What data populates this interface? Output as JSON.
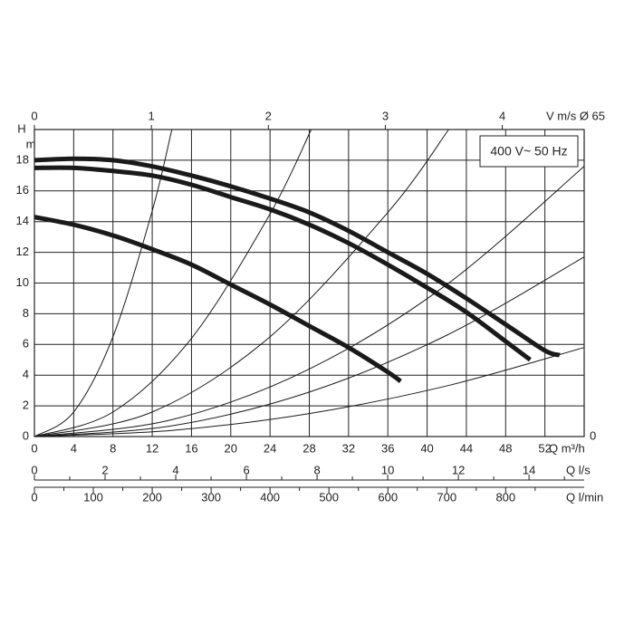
{
  "chart_data": {
    "type": "line",
    "y_label": "H",
    "y_unit": "m",
    "x_label": "Q m³/h",
    "xlim": [
      0,
      56
    ],
    "xticks": [
      0,
      4,
      8,
      12,
      16,
      20,
      24,
      28,
      32,
      36,
      40,
      44,
      48,
      52
    ],
    "ylim": [
      0,
      20
    ],
    "yticks": [
      0,
      2,
      4,
      6,
      8,
      10,
      12,
      14,
      16,
      18
    ],
    "y2lim": [
      0,
      20
    ],
    "y2ticks": [
      0
    ],
    "grid": true,
    "annotation": "400 V~ 50 Hz",
    "top_axis": {
      "label": "V m/s Ø 65",
      "xlim": [
        0,
        4.7
      ],
      "xticks": [
        0,
        1,
        2,
        3,
        4
      ]
    },
    "bottom_axes": [
      {
        "label": "Q l/s",
        "xlim": [
          0,
          15.56
        ],
        "xticks": [
          0,
          2,
          4,
          6,
          8,
          10,
          12,
          14
        ],
        "minor_xticks": [
          1,
          3,
          5,
          7,
          9,
          11,
          13,
          15
        ]
      },
      {
        "label": "Q l/min",
        "xlim": [
          0,
          933.3
        ],
        "xticks": [
          0,
          100,
          200,
          300,
          400,
          500,
          600,
          700,
          800
        ],
        "minor_xticks": [
          50,
          150,
          250,
          350,
          450,
          550,
          650,
          750,
          850
        ]
      }
    ],
    "series": [
      {
        "color": "#1a1a1a",
        "line_width": 5,
        "x": [
          0,
          4,
          8,
          12,
          16,
          20,
          24,
          28,
          32,
          36,
          40,
          44,
          48,
          52,
          53.5
        ],
        "values": [
          18.0,
          18.1,
          18.0,
          17.6,
          17.0,
          16.3,
          15.5,
          14.6,
          13.4,
          12.0,
          10.6,
          9.0,
          7.3,
          5.6,
          5.3
        ]
      },
      {
        "color": "#1a1a1a",
        "line_width": 5,
        "x": [
          0,
          4,
          8,
          12,
          16,
          20,
          24,
          28,
          32,
          36,
          40,
          44,
          48,
          50.5
        ],
        "values": [
          17.5,
          17.5,
          17.3,
          17.0,
          16.4,
          15.6,
          14.8,
          13.8,
          12.6,
          11.2,
          9.7,
          8.1,
          6.2,
          5.0
        ]
      },
      {
        "color": "#1a1a1a",
        "line_width": 5,
        "x": [
          0,
          4,
          8,
          12,
          16,
          20,
          24,
          28,
          32,
          36,
          37.3
        ],
        "values": [
          14.3,
          13.8,
          13.1,
          12.2,
          11.2,
          9.9,
          8.6,
          7.2,
          5.8,
          4.2,
          3.6
        ]
      },
      {
        "color": "#1a1a1a",
        "line_width": 1,
        "x": [
          0,
          4,
          8,
          12,
          14
        ],
        "values": [
          0,
          1.6,
          6.5,
          14.7,
          20
        ]
      },
      {
        "color": "#1a1a1a",
        "line_width": 1,
        "x": [
          0,
          8,
          16,
          24,
          28.2
        ],
        "values": [
          0,
          1.6,
          6.4,
          14.5,
          20
        ]
      },
      {
        "color": "#1a1a1a",
        "line_width": 1,
        "x": [
          0,
          12,
          24,
          36,
          42.2
        ],
        "values": [
          0,
          1.6,
          6.5,
          14.6,
          20
        ]
      },
      {
        "color": "#1a1a1a",
        "line_width": 1,
        "x": [
          0,
          14,
          28,
          42,
          56
        ],
        "values": [
          0,
          1.1,
          4.4,
          9.9,
          17.6
        ]
      },
      {
        "color": "#1a1a1a",
        "line_width": 1,
        "x": [
          0,
          14,
          28,
          42,
          56
        ],
        "values": [
          0,
          0.7,
          2.9,
          6.6,
          11.7
        ]
      },
      {
        "color": "#1a1a1a",
        "line_width": 1,
        "x": [
          0,
          14,
          28,
          42,
          56
        ],
        "values": [
          0,
          0.4,
          1.5,
          3.3,
          5.8
        ]
      }
    ]
  }
}
